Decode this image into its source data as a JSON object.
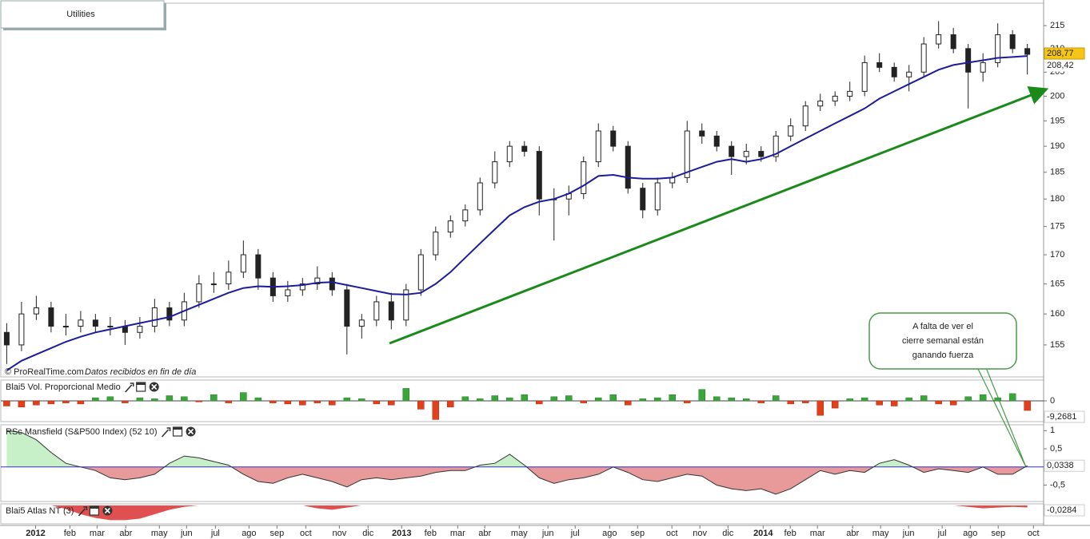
{
  "chart_data": [
    {
      "type": "candlestick",
      "title": "Utilities",
      "source": "© ProRealTime.com",
      "source_note": "Datos recibidos en fin de día",
      "log_scale": true,
      "ylim": [
        150,
        220
      ],
      "yticks": [
        155,
        160,
        165,
        170,
        175,
        180,
        185,
        190,
        195,
        200,
        205,
        210,
        215
      ],
      "xlim": [
        -0.4,
        70.1
      ],
      "xticks": [
        {
          "value": 1.95,
          "label": "2012"
        },
        {
          "value": 4.27,
          "label": "feb"
        },
        {
          "value": 6.11,
          "label": "mar"
        },
        {
          "value": 8.05,
          "label": "abr"
        },
        {
          "value": 10.32,
          "label": "may"
        },
        {
          "value": 12.16,
          "label": "jun"
        },
        {
          "value": 14.11,
          "label": "jul"
        },
        {
          "value": 16.38,
          "label": "ago"
        },
        {
          "value": 18.27,
          "label": "sep"
        },
        {
          "value": 20.22,
          "label": "oct"
        },
        {
          "value": 22.49,
          "label": "nov"
        },
        {
          "value": 24.43,
          "label": "dic"
        },
        {
          "value": 26.7,
          "label": "2013"
        },
        {
          "value": 28.65,
          "label": "feb"
        },
        {
          "value": 30.49,
          "label": "mar"
        },
        {
          "value": 32.32,
          "label": "abr"
        },
        {
          "value": 34.65,
          "label": "may"
        },
        {
          "value": 36.59,
          "label": "jun"
        },
        {
          "value": 38.43,
          "label": "jul"
        },
        {
          "value": 40.76,
          "label": "ago"
        },
        {
          "value": 42.65,
          "label": "sep"
        },
        {
          "value": 44.97,
          "label": "oct"
        },
        {
          "value": 46.86,
          "label": "nov"
        },
        {
          "value": 48.76,
          "label": "dic"
        },
        {
          "value": 51.14,
          "label": "2014"
        },
        {
          "value": 52.97,
          "label": "feb"
        },
        {
          "value": 54.81,
          "label": "mar"
        },
        {
          "value": 57.19,
          "label": "abr"
        },
        {
          "value": 59.08,
          "label": "may"
        },
        {
          "value": 60.97,
          "label": "jun"
        },
        {
          "value": 63.24,
          "label": "jul"
        },
        {
          "value": 65.14,
          "label": "ago"
        },
        {
          "value": 67.03,
          "label": "sep"
        },
        {
          "value": 69.41,
          "label": "oct"
        }
      ],
      "up_color": "#ffffff",
      "down_color": "#222222",
      "open": [
        157,
        155,
        160,
        161,
        158,
        158,
        159,
        158,
        158,
        157,
        158,
        161,
        159,
        162,
        165,
        165,
        167,
        170,
        166,
        163,
        164,
        165,
        166,
        164,
        158,
        159,
        162,
        159,
        164,
        170,
        174,
        176,
        178,
        183,
        187,
        190,
        189,
        180,
        180,
        181,
        187,
        193,
        190,
        182,
        178,
        183,
        184,
        193,
        192,
        190,
        188,
        189,
        188,
        192,
        194,
        198,
        199,
        200,
        201,
        207,
        206,
        204,
        205,
        211,
        213,
        210,
        205,
        207,
        213,
        210
      ],
      "high": [
        158.5,
        162,
        163,
        162,
        160,
        160.5,
        160,
        159.5,
        159,
        159.5,
        162.5,
        162,
        163.5,
        166.5,
        167,
        169,
        172.5,
        171,
        167,
        165.5,
        166,
        168,
        167,
        165,
        160,
        163,
        163.5,
        165,
        171,
        175,
        177,
        179,
        184,
        189,
        191,
        191,
        190,
        182,
        182.5,
        188,
        194.5,
        194,
        191,
        183,
        184,
        185,
        195,
        194.5,
        193,
        191,
        190.5,
        190,
        193,
        195.5,
        199,
        200.5,
        201,
        203,
        208.5,
        209,
        207,
        206.5,
        212.5,
        216,
        214.5,
        211,
        209,
        215.5,
        214,
        211
      ],
      "low": [
        152,
        154,
        159,
        157,
        156.5,
        157,
        157,
        156.5,
        155,
        156,
        157,
        158,
        158,
        161,
        163.5,
        164,
        166,
        164,
        162,
        162,
        163,
        164,
        163,
        153.5,
        156,
        158,
        157.5,
        158,
        163,
        169,
        173,
        175,
        177,
        182,
        186,
        188,
        177,
        172.5,
        177,
        180,
        186,
        189,
        181,
        176.5,
        177,
        182,
        183,
        190.5,
        189,
        184.5,
        186.5,
        187,
        187,
        191,
        193,
        197,
        198,
        199,
        200,
        205,
        203,
        201,
        204,
        210,
        209,
        197.5,
        203,
        206,
        209,
        204.5
      ],
      "close": [
        155,
        160,
        161,
        158,
        158,
        159,
        158,
        158,
        157,
        158,
        161,
        159,
        162,
        165,
        165,
        167,
        170,
        166,
        163,
        164,
        165,
        166,
        164,
        158,
        159,
        162,
        159,
        164,
        170,
        174,
        176,
        178,
        183,
        187,
        190,
        189,
        180,
        180,
        181,
        187,
        193,
        190,
        182,
        178,
        183,
        184,
        193,
        192,
        190,
        188,
        189,
        188,
        192,
        194,
        198,
        199,
        200,
        201,
        207,
        206,
        204,
        205,
        211,
        213,
        210,
        205,
        207,
        213,
        210,
        208.77
      ],
      "close_label": "208,77",
      "moving_average": {
        "color": "#1c1c9c",
        "values": [
          151,
          152.5,
          153.5,
          154.5,
          155.5,
          156.3,
          157,
          157.5,
          158,
          158.5,
          159,
          159.5,
          160.5,
          161.5,
          162.5,
          163.5,
          164.3,
          164.6,
          164.5,
          164.6,
          164.8,
          165.2,
          165.3,
          164.8,
          164.3,
          163.8,
          163.3,
          163.2,
          163.5,
          165,
          167,
          169.5,
          172,
          174.5,
          177,
          178.5,
          179.5,
          180,
          181,
          182.5,
          184.3,
          184.5,
          184,
          183.8,
          183.8,
          184,
          185,
          186,
          187,
          187.5,
          187,
          187.5,
          188.5,
          190,
          191.5,
          193,
          194.5,
          196,
          197.5,
          199.5,
          201,
          202.5,
          204,
          205.5,
          206.5,
          207,
          207.5,
          208,
          208.2,
          208.42
        ],
        "label": "208,42"
      },
      "annotation": [
        "A falta de ver el",
        "cierre semanal están",
        "ganando fuerza"
      ]
    },
    {
      "type": "bar",
      "title": "Blai5 Vol. Proporcional Medio",
      "ylim": [
        -20,
        20
      ],
      "yticks": [
        0
      ],
      "pos_color": "#3aa63a",
      "neg_color": "#e0401c",
      "values": [
        -5,
        -6,
        -4,
        -3,
        -2,
        -3,
        3,
        4,
        -2,
        3,
        2,
        5,
        4,
        -1,
        6,
        -2,
        8,
        3,
        -2,
        -3,
        -4,
        -2,
        -4,
        3,
        2,
        -3,
        -4,
        12,
        -8,
        -18,
        -6,
        4,
        2,
        5,
        3,
        6,
        -3,
        4,
        5,
        -2,
        3,
        6,
        -4,
        2,
        3,
        6,
        -2,
        11,
        4,
        3,
        2,
        -2,
        5,
        -3,
        -2,
        -14,
        -7,
        2,
        3,
        -4,
        -5,
        3,
        5,
        -3,
        -4,
        4,
        6,
        3,
        7,
        -9.2681
      ],
      "last_label": "-9,2681"
    },
    {
      "type": "area",
      "title": "RSc Mansfield (S&P500 Index) (52 10)",
      "ylim": [
        -0.95,
        1.16
      ],
      "yticks": [
        1,
        {
          "value": 0.5,
          "label": "0,5"
        },
        {
          "value": -0.5,
          "label": "-0,5"
        }
      ],
      "pos_color": "#c8f0c8",
      "neg_color": "#e89a9a",
      "zero_color": "#3030c0",
      "values": [
        1,
        0.95,
        0.75,
        0.4,
        0.1,
        0,
        -0.1,
        -0.3,
        -0.35,
        -0.3,
        -0.2,
        0.1,
        0.3,
        0.25,
        0.15,
        0.05,
        -0.2,
        -0.4,
        -0.45,
        -0.3,
        -0.2,
        -0.3,
        -0.4,
        -0.55,
        -0.35,
        -0.3,
        -0.35,
        -0.3,
        -0.25,
        -0.15,
        -0.1,
        -0.1,
        0.05,
        0.1,
        0.35,
        0.05,
        -0.3,
        -0.45,
        -0.35,
        -0.3,
        -0.2,
        0,
        -0.15,
        -0.35,
        -0.4,
        -0.3,
        -0.2,
        -0.25,
        -0.5,
        -0.6,
        -0.65,
        -0.6,
        -0.75,
        -0.6,
        -0.35,
        -0.1,
        -0.2,
        -0.1,
        -0.15,
        0.1,
        0.2,
        0.05,
        -0.15,
        -0.05,
        -0.1,
        -0.15,
        0,
        -0.2,
        -0.2,
        0.0338
      ],
      "last_label": "0,0338"
    },
    {
      "type": "area",
      "title": "Blai5 Atlas NT (3)",
      "ylim": [
        -0.25,
        0.02
      ],
      "yticks": [],
      "pos_color": "#c8f0c8",
      "neg_color": "#e05050",
      "values": [
        0,
        0,
        0,
        0,
        -0.05,
        -0.12,
        -0.17,
        -0.2,
        -0.2,
        -0.18,
        -0.12,
        -0.06,
        -0.02,
        0,
        0,
        0,
        0,
        0,
        0,
        0,
        0,
        -0.04,
        -0.06,
        -0.03,
        0,
        0,
        0,
        0,
        0,
        0,
        0,
        0,
        0,
        0,
        0,
        0,
        0,
        0,
        0,
        0,
        0,
        0,
        0,
        0,
        0,
        0,
        0,
        0,
        0,
        0,
        0,
        0,
        0,
        0,
        0,
        0,
        0,
        0,
        0,
        0,
        0,
        0,
        0,
        0,
        0,
        -0.02,
        -0.04,
        -0.03,
        -0.02,
        -0.0284
      ],
      "last_label": "-0,0284"
    }
  ]
}
